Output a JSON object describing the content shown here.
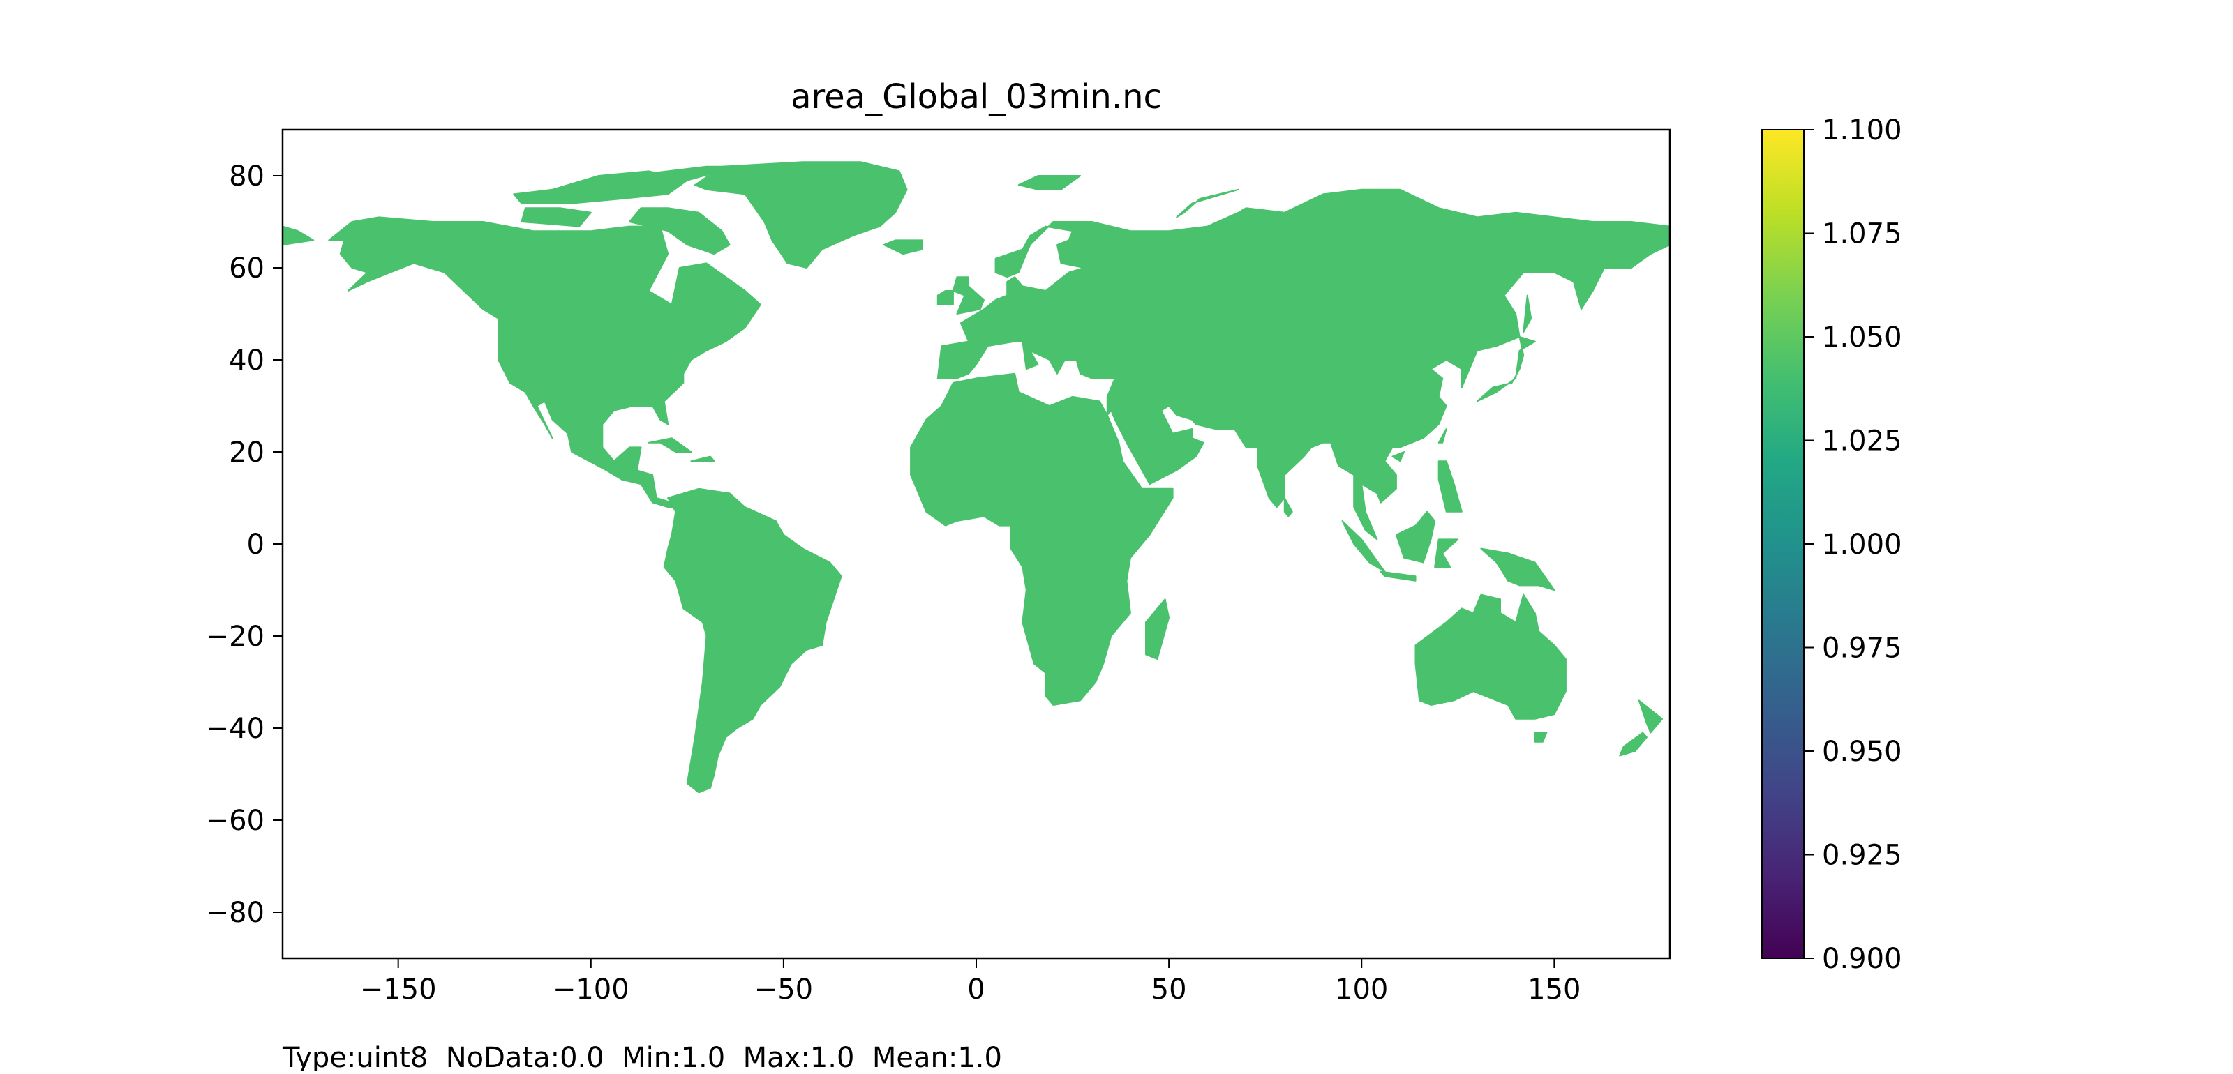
{
  "chart_data": {
    "type": "heatmap",
    "title": "area_Global_03min.nc",
    "xlabel": "",
    "ylabel": "",
    "xlim": [
      -180,
      180
    ],
    "ylim": [
      -90,
      90
    ],
    "x_ticks": [
      -150,
      -100,
      -50,
      0,
      50,
      100,
      150
    ],
    "x_tick_labels": [
      "−150",
      "−100",
      "−50",
      "0",
      "50",
      "100",
      "150"
    ],
    "y_ticks": [
      80,
      60,
      40,
      20,
      0,
      -20,
      -40,
      -60,
      -80
    ],
    "y_tick_labels": [
      "80",
      "60",
      "40",
      "20",
      "0",
      "−20",
      "−40",
      "−60",
      "−80"
    ],
    "grid": false,
    "land_value": 1.0,
    "land_color": "#4ac16d",
    "nodata_color": "#ffffff",
    "colormap": "viridis",
    "colorbar": {
      "range": [
        0.9,
        1.1
      ],
      "ticks": [
        1.1,
        1.075,
        1.05,
        1.025,
        1.0,
        0.975,
        0.95,
        0.925,
        0.9
      ],
      "tick_labels": [
        "1.100",
        "1.075",
        "1.050",
        "1.025",
        "1.000",
        "0.975",
        "0.950",
        "0.925",
        "0.900"
      ]
    }
  },
  "footer": {
    "text": "Type:uint8  NoData:0.0  Min:1.0  Max:1.0  Mean:1.0"
  }
}
